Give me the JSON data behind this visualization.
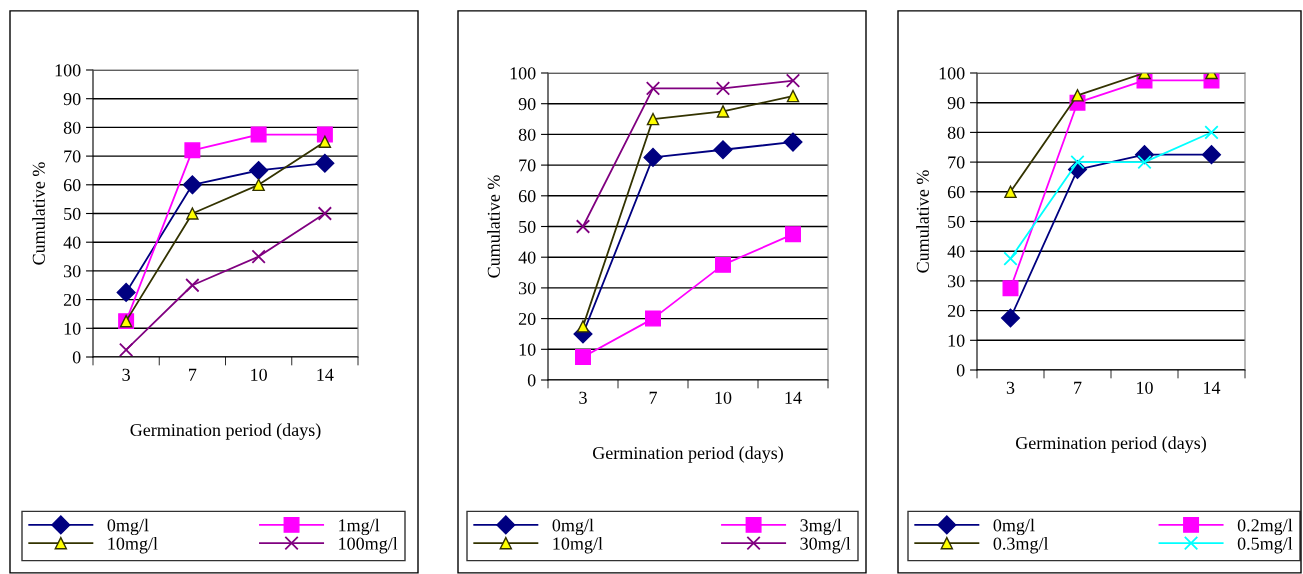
{
  "chart_data": [
    {
      "type": "line",
      "categories": [
        "3",
        "7",
        "10",
        "14"
      ],
      "xlabel": "Germination period (days)",
      "ylabel": "Cumulative %",
      "ylim": [
        0,
        100
      ],
      "yticks": [
        0,
        10,
        20,
        30,
        40,
        50,
        60,
        70,
        80,
        90,
        100
      ],
      "grid": "y",
      "legend": "bottom",
      "series": [
        {
          "name": "0mg/l",
          "color": "#000080",
          "marker": "diamond",
          "values": [
            22.5,
            60,
            65,
            67.5
          ]
        },
        {
          "name": "1mg/l",
          "color": "#ff00ff",
          "marker": "square",
          "values": [
            12.5,
            72,
            77.5,
            77.5
          ]
        },
        {
          "name": "10mg/l",
          "color": "#333300",
          "marker": "triangle",
          "values": [
            12.5,
            50,
            60,
            75
          ]
        },
        {
          "name": "100mg/l",
          "color": "#800080",
          "marker": "cross",
          "values": [
            2.5,
            25,
            35,
            50
          ]
        }
      ]
    },
    {
      "type": "line",
      "categories": [
        "3",
        "7",
        "10",
        "14"
      ],
      "xlabel": "Germination period (days)",
      "ylabel": "Cumulative %",
      "ylim": [
        0,
        100
      ],
      "yticks": [
        0,
        10,
        20,
        30,
        40,
        50,
        60,
        70,
        80,
        90,
        100
      ],
      "grid": "y",
      "legend": "bottom",
      "series": [
        {
          "name": "0mg/l",
          "color": "#000080",
          "marker": "diamond",
          "values": [
            15,
            72.5,
            75,
            77.5
          ]
        },
        {
          "name": "3mg/l",
          "color": "#ff00ff",
          "marker": "square",
          "values": [
            7.5,
            20,
            37.5,
            47.5
          ]
        },
        {
          "name": "10mg/l",
          "color": "#333300",
          "marker": "triangle",
          "values": [
            17.5,
            85,
            87.5,
            92.5
          ]
        },
        {
          "name": "30mg/l",
          "color": "#800080",
          "marker": "cross",
          "values": [
            50,
            95,
            95,
            97.5
          ]
        }
      ]
    },
    {
      "type": "line",
      "categories": [
        "3",
        "7",
        "10",
        "14"
      ],
      "xlabel": "Germination period (days)",
      "ylabel": "Cumulative %",
      "ylim": [
        0,
        100
      ],
      "yticks": [
        0,
        10,
        20,
        30,
        40,
        50,
        60,
        70,
        80,
        90,
        100
      ],
      "grid": "y",
      "legend": "bottom",
      "series": [
        {
          "name": "0mg/l",
          "color": "#000080",
          "marker": "diamond",
          "values": [
            17.5,
            67.5,
            72.5,
            72.5
          ]
        },
        {
          "name": "0.2mg/l",
          "color": "#ff00ff",
          "marker": "square",
          "values": [
            27.5,
            90,
            97.5,
            97.5
          ]
        },
        {
          "name": "0.3mg/l",
          "color": "#333300",
          "marker": "triangle",
          "values": [
            60,
            92.5,
            100,
            100
          ]
        },
        {
          "name": "0.5mg/l",
          "color": "#00ffff",
          "marker": "cross",
          "values": [
            37.5,
            70,
            70,
            80
          ]
        }
      ]
    }
  ]
}
